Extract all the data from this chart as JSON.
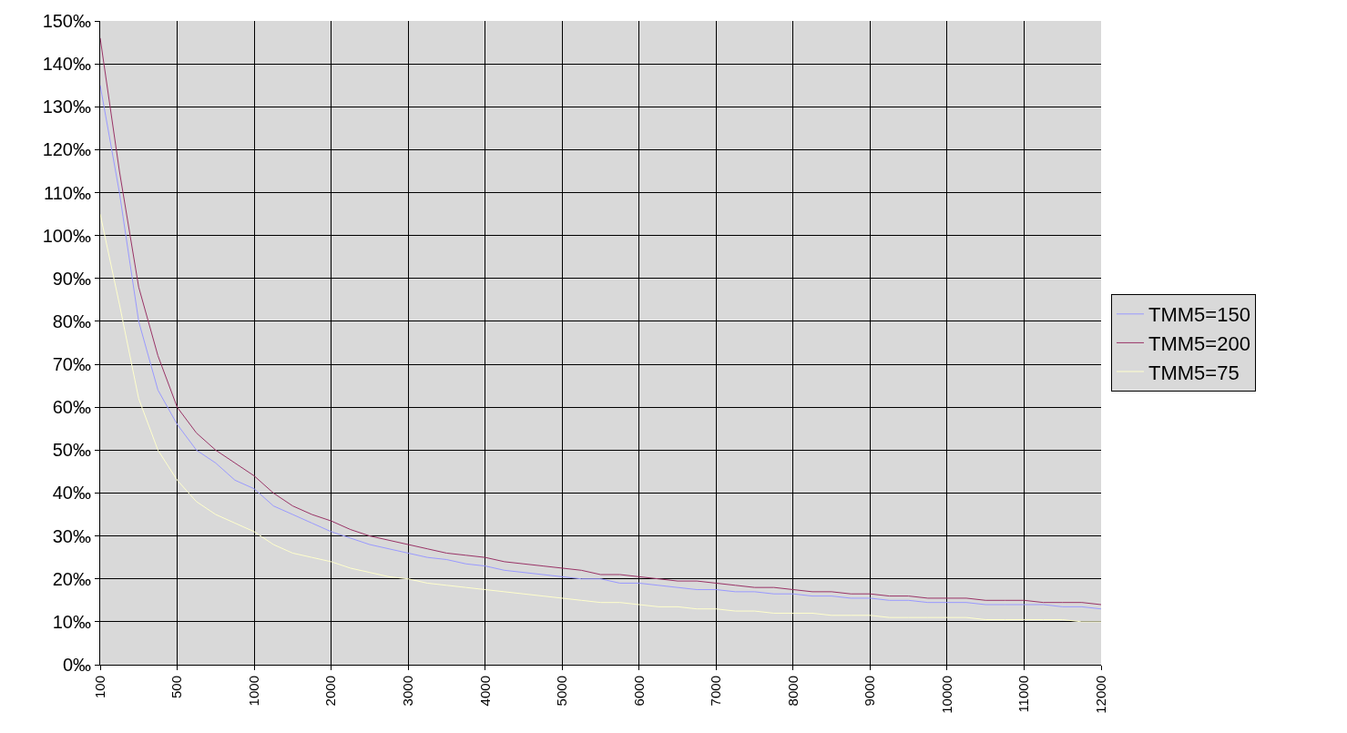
{
  "chart_data": {
    "type": "line",
    "categories": [
      "100",
      null,
      null,
      null,
      "500",
      null,
      null,
      null,
      "1000",
      null,
      null,
      null,
      "2000",
      null,
      null,
      null,
      "3000",
      null,
      null,
      null,
      "4000",
      null,
      null,
      null,
      "5000",
      null,
      null,
      null,
      "6000",
      null,
      null,
      null,
      "7000",
      null,
      null,
      null,
      "8000",
      null,
      null,
      null,
      "9000",
      null,
      null,
      null,
      "10000",
      null,
      null,
      null,
      "11000",
      null,
      null,
      null,
      "12000"
    ],
    "series": [
      {
        "name": "TMM5=150",
        "color": "#9999ff",
        "values": [
          135,
          110,
          80,
          64,
          56,
          50,
          47,
          43,
          41,
          37,
          35,
          33,
          31,
          29.5,
          28,
          27,
          26,
          25,
          24.5,
          23.5,
          23,
          22,
          21.5,
          21,
          20.5,
          20,
          20,
          19,
          19,
          18.5,
          18,
          17.5,
          17.5,
          17,
          17,
          16.5,
          16.5,
          16,
          16,
          15.5,
          15.5,
          15,
          15,
          14.5,
          14.5,
          14.5,
          14,
          14,
          14,
          14,
          13.5,
          13.5,
          13
        ]
      },
      {
        "name": "TMM5=200",
        "color": "#993366",
        "values": [
          146,
          115,
          88,
          72,
          60,
          54,
          50,
          47,
          44,
          40,
          37,
          35,
          33.5,
          31.5,
          30,
          29,
          28,
          27,
          26,
          25.5,
          25,
          24,
          23.5,
          23,
          22.5,
          22,
          21,
          21,
          20.5,
          20,
          19.5,
          19.5,
          19,
          18.5,
          18,
          18,
          17.5,
          17,
          17,
          16.5,
          16.5,
          16,
          16,
          15.5,
          15.5,
          15.5,
          15,
          15,
          15,
          14.5,
          14.5,
          14.5,
          14
        ]
      },
      {
        "name": "TMM5=75",
        "color": "#ffffcc",
        "values": [
          105,
          84,
          62,
          50,
          43,
          38,
          35,
          33,
          31,
          28,
          26,
          25,
          24,
          22.5,
          21.5,
          20.5,
          20,
          19,
          18.5,
          18,
          17.5,
          17,
          16.5,
          16,
          15.5,
          15,
          14.5,
          14.5,
          14,
          13.5,
          13.5,
          13,
          13,
          12.5,
          12.5,
          12,
          12,
          12,
          11.5,
          11.5,
          11.5,
          11,
          11,
          11,
          11,
          11,
          10.5,
          10.5,
          10.5,
          10.5,
          10.5,
          10,
          10
        ]
      }
    ],
    "ylim": [
      0,
      150
    ],
    "yticks": [
      {
        "value": 0,
        "label": "0‰"
      },
      {
        "value": 10,
        "label": "10‰"
      },
      {
        "value": 20,
        "label": "20‰"
      },
      {
        "value": 30,
        "label": "30‰"
      },
      {
        "value": 40,
        "label": "40‰"
      },
      {
        "value": 50,
        "label": "50‰"
      },
      {
        "value": 60,
        "label": "60‰"
      },
      {
        "value": 70,
        "label": "70‰"
      },
      {
        "value": 80,
        "label": "80‰"
      },
      {
        "value": 90,
        "label": "90‰"
      },
      {
        "value": 100,
        "label": "100‰"
      },
      {
        "value": 110,
        "label": "110‰"
      },
      {
        "value": 120,
        "label": "120‰"
      },
      {
        "value": 130,
        "label": "130‰"
      },
      {
        "value": 140,
        "label": "140‰"
      },
      {
        "value": 150,
        "label": "150‰"
      }
    ],
    "grid": true,
    "legend": "right",
    "marker": "none",
    "line_style": "solid"
  }
}
